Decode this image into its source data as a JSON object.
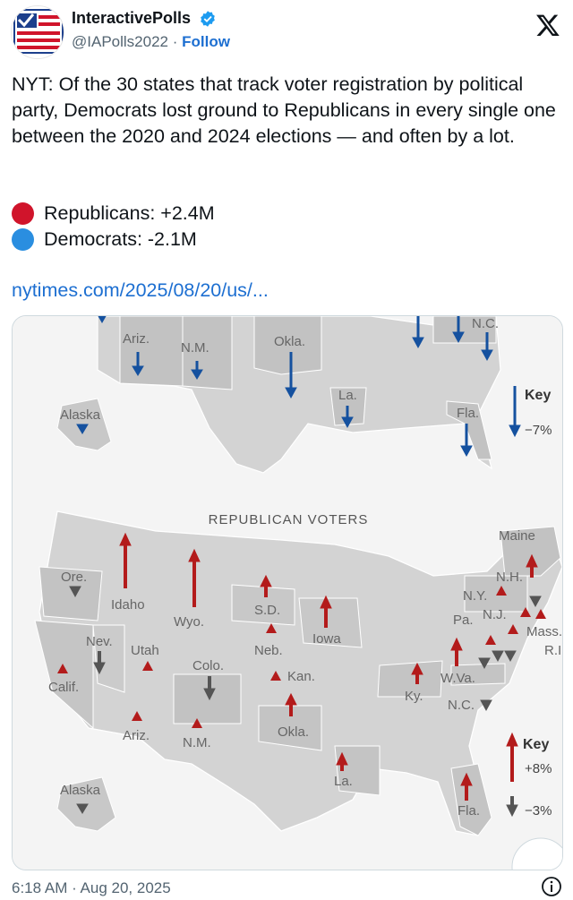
{
  "account": {
    "display_name": "InteractivePolls",
    "handle": "@IAPolls2022",
    "separator": "·",
    "follow_label": "Follow"
  },
  "tweet": {
    "text": "NYT: Of the 30 states that track voter registration by political party, Democrats lost ground to Republicans in every single one between the 2020 and 2024 elections — and often by a lot.",
    "stat_republicans": "Republicans: +2.4M",
    "stat_democrats": "Democrats: -2.1M",
    "link_text": "nytimes.com/2025/08/20/us/...",
    "timestamp": "6:18 AM · Aug 20, 2025"
  },
  "colors": {
    "republican_dot": "#d0142b",
    "democrat_dot": "#2a8ee0",
    "rep_arrow": "#b31b1b",
    "dem_arrow": "#15519f",
    "decline_arrow": "#555555",
    "link": "#1d6fd1"
  },
  "map_top": {
    "labels": [
      "Ariz.",
      "N.M.",
      "Okla.",
      "N.C.",
      "La.",
      "Alaska",
      "Fla."
    ],
    "key_title": "Key",
    "key_value": "−7%"
  },
  "map_bottom": {
    "title": "REPUBLICAN VOTERS",
    "labels": [
      "Maine",
      "N.H.",
      "N.Y.",
      "N.J.",
      "Pa.",
      "Mass.",
      "R.I.",
      "Ore.",
      "Idaho",
      "Wyo.",
      "S.D.",
      "Nev.",
      "Utah",
      "Neb.",
      "Iowa",
      "Colo.",
      "Kan.",
      "W.Va.",
      "Ky.",
      "N.C.",
      "Calif.",
      "Ariz.",
      "N.M.",
      "Okla.",
      "La.",
      "Alaska",
      "Fla."
    ],
    "key_title": "Key",
    "key_up": "+8%",
    "key_down": "−3%"
  },
  "icons": {
    "avatar": "ballot-check-flag-icon",
    "verified": "verified-badge-icon",
    "x_logo": "x-logo-icon",
    "info": "info-icon"
  }
}
